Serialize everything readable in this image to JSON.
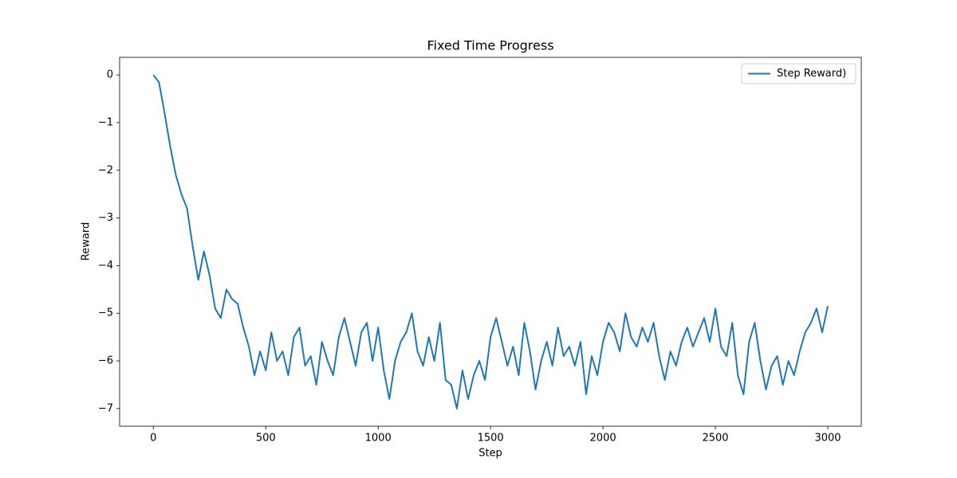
{
  "chart_data": {
    "type": "line",
    "title": "Fixed Time Progress",
    "x_label": "Step",
    "y_label": "Reward",
    "x": [
      0,
      25,
      50,
      75,
      100,
      125,
      150,
      175,
      200,
      225,
      250,
      275,
      300,
      325,
      350,
      375,
      400,
      425,
      450,
      475,
      500,
      525,
      550,
      575,
      600,
      625,
      650,
      675,
      700,
      725,
      750,
      775,
      800,
      825,
      850,
      875,
      900,
      925,
      950,
      975,
      1000,
      1025,
      1050,
      1075,
      1100,
      1125,
      1150,
      1175,
      1200,
      1225,
      1250,
      1275,
      1300,
      1325,
      1350,
      1375,
      1400,
      1425,
      1450,
      1475,
      1500,
      1525,
      1550,
      1575,
      1600,
      1625,
      1650,
      1675,
      1700,
      1725,
      1750,
      1775,
      1800,
      1825,
      1850,
      1875,
      1900,
      1925,
      1950,
      1975,
      2000,
      2025,
      2050,
      2075,
      2100,
      2125,
      2150,
      2175,
      2200,
      2225,
      2250,
      2275,
      2300,
      2325,
      2350,
      2375,
      2400,
      2425,
      2450,
      2475,
      2500,
      2525,
      2550,
      2575,
      2600,
      2625,
      2650,
      2675,
      2700,
      2725,
      2750,
      2775,
      2800,
      2825,
      2850,
      2875,
      2900,
      2925,
      2950,
      2975,
      3000
    ],
    "series": [
      {
        "name": "Step Reward)",
        "color": "#1f77b4",
        "values": [
          0,
          -0.15,
          -0.8,
          -1.5,
          -2.1,
          -2.5,
          -2.8,
          -3.6,
          -4.3,
          -3.7,
          -4.2,
          -4.9,
          -5.1,
          -4.5,
          -4.7,
          -4.8,
          -5.3,
          -5.7,
          -6.3,
          -5.8,
          -6.2,
          -5.4,
          -6.0,
          -5.8,
          -6.3,
          -5.5,
          -5.3,
          -6.1,
          -5.9,
          -6.5,
          -5.6,
          -6.0,
          -6.3,
          -5.5,
          -5.1,
          -5.6,
          -6.1,
          -5.4,
          -5.2,
          -6.0,
          -5.3,
          -6.2,
          -6.8,
          -6.0,
          -5.6,
          -5.4,
          -5.0,
          -5.8,
          -6.1,
          -5.5,
          -6.0,
          -5.2,
          -6.4,
          -6.5,
          -7.0,
          -6.2,
          -6.8,
          -6.3,
          -6.0,
          -6.4,
          -5.5,
          -5.1,
          -5.6,
          -6.1,
          -5.7,
          -6.3,
          -5.2,
          -5.8,
          -6.6,
          -6.0,
          -5.6,
          -6.1,
          -5.3,
          -5.9,
          -5.7,
          -6.1,
          -5.6,
          -6.7,
          -5.9,
          -6.3,
          -5.6,
          -5.2,
          -5.4,
          -5.8,
          -5.0,
          -5.5,
          -5.7,
          -5.3,
          -5.6,
          -5.2,
          -5.9,
          -6.4,
          -5.8,
          -6.1,
          -5.6,
          -5.3,
          -5.7,
          -5.4,
          -5.1,
          -5.6,
          -4.9,
          -5.7,
          -5.9,
          -5.2,
          -6.3,
          -6.7,
          -5.6,
          -5.2,
          -6.0,
          -6.6,
          -6.1,
          -5.9,
          -6.5,
          -6.0,
          -6.3,
          -5.8,
          -5.4,
          -5.2,
          -4.9,
          -5.4,
          -4.85
        ]
      }
    ],
    "xlim": [
      -150,
      3149
    ],
    "ylim": [
      -7.37,
      0.37
    ],
    "xticks": [
      0,
      500,
      1000,
      1500,
      2000,
      2500,
      3000
    ],
    "yticks": [
      {
        "value": -7,
        "label": "−7"
      },
      {
        "value": -6,
        "label": "−6"
      },
      {
        "value": -5,
        "label": "−5"
      },
      {
        "value": -4,
        "label": "−4"
      },
      {
        "value": -3,
        "label": "−3"
      },
      {
        "value": -2,
        "label": "−2"
      },
      {
        "value": -1,
        "label": "−1"
      },
      0
    ],
    "legend": "upper right",
    "grid": false
  }
}
